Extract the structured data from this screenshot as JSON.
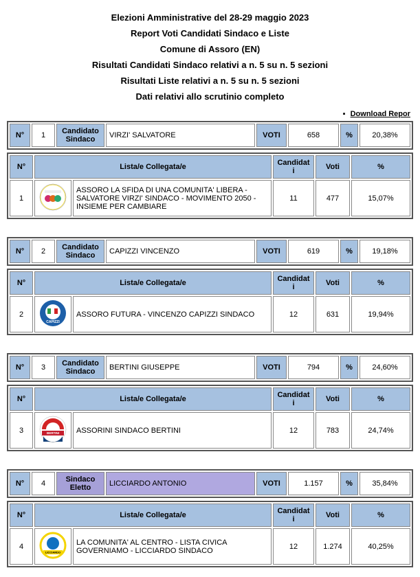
{
  "header": {
    "line1": "Elezioni Amministrative del 28-29 maggio 2023",
    "line2": "Report Voti Candidati Sindaco e Liste",
    "line3": "Comune di Assoro (EN)",
    "line4": "Risultati Candidati Sindaco relativi a n. 5 su n. 5 sezioni",
    "line5": "Risultati Liste relativi a n. 5 su n. 5 sezioni",
    "line6": "Dati relativi allo scrutinio completo"
  },
  "download_label": "Download Repor",
  "labels": {
    "n": "N°",
    "candidato_sindaco": "Candidato Sindaco",
    "sindaco_eletto": "Sindaco Eletto",
    "voti_hdr": "VOTI",
    "pct_sym": "%",
    "lista": "Lista/e Collegata/e",
    "candidati": "Candidati",
    "voti": "Voti",
    "pct": "%"
  },
  "candidates": [
    {
      "num": "1",
      "name": "VIRZI' SALVATORE",
      "voti": "658",
      "pct": "20,38%",
      "elected": false,
      "lists": [
        {
          "num": "1",
          "name": "ASSORO LA SFIDA DI UNA COMUNITA' LIBERA - SALVATORE VIRZI' SINDACO - MOVIMENTO 2050 - INSIEME PER CAMBIARE",
          "cand": "11",
          "voti": "477",
          "pct": "15,07%",
          "logo_colors": {
            "bg": "#ffffff",
            "ring": "#f5e050",
            "dot1": "#d02c6c",
            "dot2": "#e06a1a",
            "dot3": "#2aa870"
          }
        }
      ]
    },
    {
      "num": "2",
      "name": "CAPIZZI VINCENZO",
      "voti": "619",
      "pct": "19,18%",
      "elected": false,
      "lists": [
        {
          "num": "2",
          "name": "ASSORO FUTURA - VINCENZO CAPIZZI SINDACO",
          "cand": "12",
          "voti": "631",
          "pct": "19,94%",
          "logo_colors": {
            "bg": "#1d5fa8",
            "inner": "#ffffff",
            "flag1": "#2a9a46",
            "flag2": "#ffffff",
            "flag3": "#d22424"
          }
        }
      ]
    },
    {
      "num": "3",
      "name": "BERTINI GIUSEPPE",
      "voti": "794",
      "pct": "24,60%",
      "elected": false,
      "lists": [
        {
          "num": "3",
          "name": "ASSORINI SINDACO BERTINI",
          "cand": "12",
          "voti": "783",
          "pct": "24,74%",
          "logo_colors": {
            "bg": "#ffffff",
            "top": "#d22424",
            "mid": "#ffffff",
            "band": "#c51d2d",
            "bot": "#15427a"
          }
        }
      ]
    },
    {
      "num": "4",
      "name": "LICCIARDO ANTONIO",
      "voti": "1.157",
      "pct": "35,84%",
      "elected": true,
      "lists": [
        {
          "num": "4",
          "name": "LA COMUNITA' AL CENTRO - LISTA CIVICA GOVERNIAMO - LICCIARDO SINDACO",
          "cand": "12",
          "voti": "1.274",
          "pct": "40,25%",
          "logo_colors": {
            "bg": "#ffffff",
            "ring": "#f4d400",
            "inner": "#1070c0",
            "band": "#f4d400"
          }
        }
      ]
    }
  ]
}
